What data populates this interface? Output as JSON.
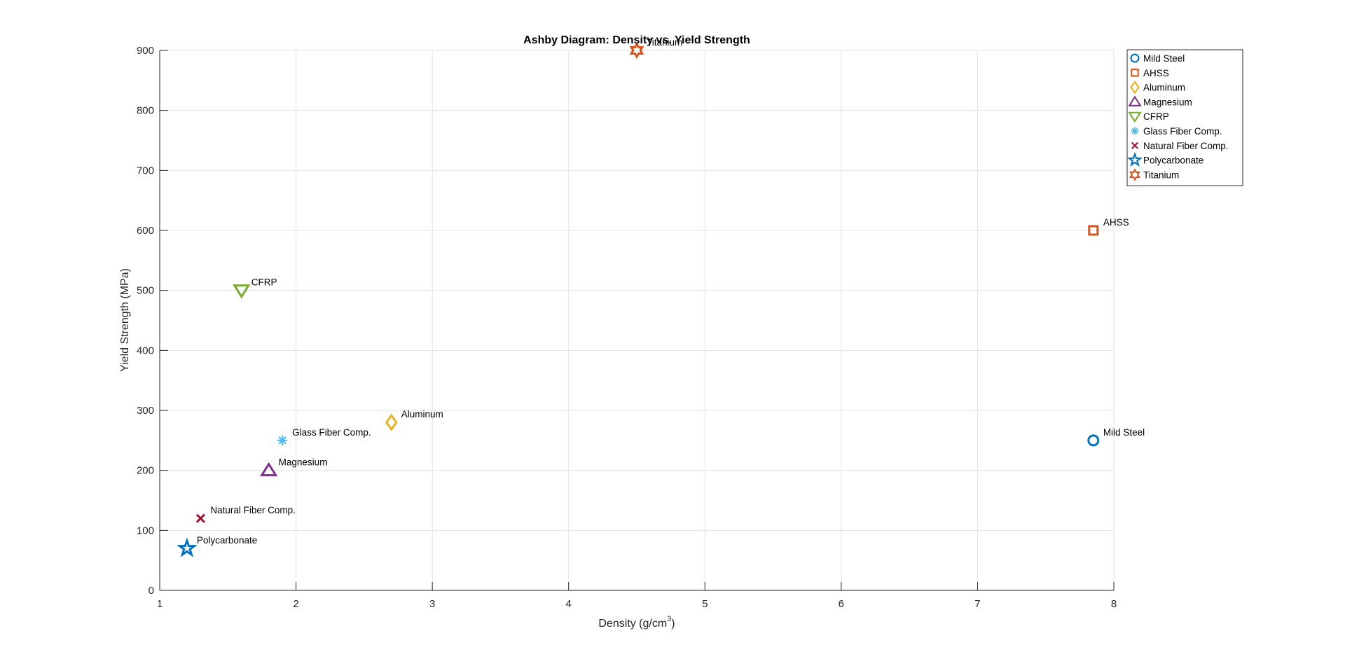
{
  "chart_data": {
    "type": "scatter",
    "title": "Ashby Diagram: Density vs. Yield Strength",
    "xlabel": "Density (g/cm",
    "xlabel_superscript": "3",
    "xlabel_suffix": ")",
    "ylabel": "Yield Strength (MPa)",
    "xlim": [
      1,
      8
    ],
    "ylim": [
      0,
      900
    ],
    "xticks": [
      1,
      2,
      3,
      4,
      5,
      6,
      7,
      8
    ],
    "yticks": [
      0,
      100,
      200,
      300,
      400,
      500,
      600,
      700,
      800,
      900
    ],
    "grid": true,
    "legend_position": "top-right outside",
    "series": [
      {
        "name": "Mild Steel",
        "x": 7.85,
        "y": 250,
        "marker": "circle",
        "color": "#0072BD"
      },
      {
        "name": "AHSS",
        "x": 7.85,
        "y": 600,
        "marker": "square",
        "color": "#D95319"
      },
      {
        "name": "Aluminum",
        "x": 2.7,
        "y": 280,
        "marker": "diamond",
        "color": "#EDB120"
      },
      {
        "name": "Magnesium",
        "x": 1.8,
        "y": 200,
        "marker": "triangle-up",
        "color": "#7E2F8E"
      },
      {
        "name": "CFRP",
        "x": 1.6,
        "y": 500,
        "marker": "triangle-down",
        "color": "#77AC30"
      },
      {
        "name": "Glass Fiber Comp.",
        "x": 1.9,
        "y": 250,
        "marker": "asterisk",
        "color": "#4DBEEE"
      },
      {
        "name": "Natural Fiber Comp.",
        "x": 1.3,
        "y": 120,
        "marker": "x",
        "color": "#A2142F"
      },
      {
        "name": "Polycarbonate",
        "x": 1.2,
        "y": 70,
        "marker": "pentagram",
        "color": "#0072BD"
      },
      {
        "name": "Titanium",
        "x": 4.5,
        "y": 900,
        "marker": "hexagram",
        "color": "#D95319"
      }
    ]
  }
}
